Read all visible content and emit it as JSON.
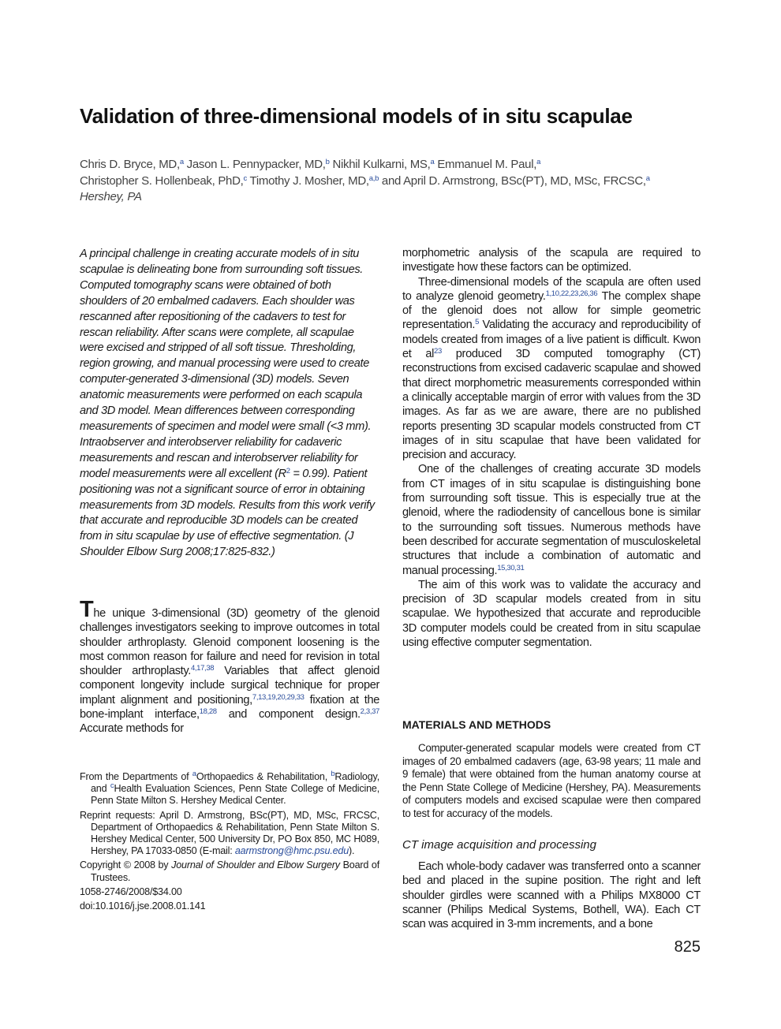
{
  "title": "Validation of three-dimensional models of in situ scapulae",
  "authors": [
    [
      {
        "t": "Chris D. Bryce, MD,"
      },
      {
        "s": "a"
      },
      {
        "t": " Jason L. Pennypacker, MD,"
      },
      {
        "s": "b"
      },
      {
        "t": " Nikhil Kulkarni, MS,"
      },
      {
        "s": "a"
      },
      {
        "t": " Emmanuel M. Paul,"
      },
      {
        "s": "a"
      }
    ],
    [
      {
        "t": "Christopher S. Hollenbeak, PhD,"
      },
      {
        "s": "c"
      },
      {
        "t": " Timothy J. Mosher, MD,"
      },
      {
        "s": "a,b"
      },
      {
        "t": " and April D. Armstrong, BSc(PT), MD, MSc, FRCSC,"
      },
      {
        "s": "a"
      }
    ],
    [
      {
        "i": "Hershey, PA"
      }
    ]
  ],
  "abstract": [
    {
      "t": "A principal challenge in creating accurate models of in situ scapulae is delineating bone from surrounding soft tissues. Computed tomography scans were obtained of both shoulders of 20 embalmed cadavers. Each shoulder was rescanned after repositioning of the cadavers to test for rescan reliability. After scans were complete, all scapulae were excised and stripped of all soft tissue. Thresholding, region growing, and manual processing were used to create computer-generated 3-dimensional (3D) models. Seven anatomic measurements were performed on each scapula and 3D model. Mean differences between corresponding measurements of specimen and model were small (<3 mm). Intraobserver and interobserver reliability for cadaveric measurements and rescan and interobserver reliability for model measurements were all excellent (R"
    },
    {
      "s": "2"
    },
    {
      "t": " = 0.99). Patient positioning was not a significant source of error in obtaining measurements from 3D models. Results from this work verify that accurate and reproducible 3D models can be created from in situ scapulae by use of effective segmentation. (J Shoulder Elbow Surg 2008;17:825-832.)"
    }
  ],
  "left_body": [
    [
      {
        "d": "T"
      },
      {
        "t": "he unique 3-dimensional (3D) geometry of the glenoid challenges investigators seeking to improve outcomes in total shoulder arthroplasty. Glenoid component loosening is the most common reason for failure and need for revision in total shoulder arthroplasty."
      },
      {
        "s": "4,17,38"
      },
      {
        "t": " Variables that affect glenoid component longevity include surgical technique for proper implant alignment and positioning,"
      },
      {
        "s": "7,13,19,20,29,33"
      },
      {
        "t": " fixation at the bone-implant interface,"
      },
      {
        "s": "18,28"
      },
      {
        "t": " and component design."
      },
      {
        "s": "2,3,37"
      },
      {
        "t": " Accurate methods for"
      }
    ]
  ],
  "footnotes": [
    [
      {
        "t": "From the Departments of "
      },
      {
        "s": "a"
      },
      {
        "t": "Orthopaedics & Rehabilitation, "
      },
      {
        "s": "b"
      },
      {
        "t": "Radiology, and "
      },
      {
        "s": "c"
      },
      {
        "t": "Health Evaluation Sciences, Penn State College of Medicine, Penn State Milton S. Hershey Medical Center."
      }
    ],
    [
      {
        "t": "Reprint requests: April D. Armstrong, BSc(PT), MD, MSc, FRCSC, Department of Orthopaedics & Rehabilitation, Penn State Milton S. Hershey Medical Center, 500 University Dr, PO Box 850, MC H089, Hershey, PA 17033-0850 (E-mail: "
      },
      {
        "i": "aarmstrong@hmc.psu.edu"
      },
      {
        "t": ")."
      }
    ],
    [
      {
        "t": "Copyright © 2008 by "
      },
      {
        "i": "Journal of Shoulder and Elbow Surgery"
      },
      {
        "t": " Board of Trustees."
      }
    ],
    [
      {
        "t": "1058-2746/2008/$34.00"
      }
    ],
    [
      {
        "t": "doi:10.1016/j.jse.2008.01.141"
      }
    ]
  ],
  "right_body": [
    [
      {
        "t": "morphometric analysis of the scapula are required to investigate how these factors can be optimized."
      }
    ],
    [
      {
        "t": "Three-dimensional models of the scapula are often used to analyze glenoid geometry."
      },
      {
        "s": "1,10,22,23,26,36"
      },
      {
        "t": " The complex shape of the glenoid does not allow for simple geometric representation."
      },
      {
        "s": "5"
      },
      {
        "t": " Validating the accuracy and reproducibility of models created from images of a live patient is difficult. Kwon et al"
      },
      {
        "s": "23"
      },
      {
        "t": " produced 3D computed tomography (CT) reconstructions from excised cadaveric scapulae and showed that direct morphometric measurements corresponded within a clinically acceptable margin of error with values from the 3D images. As far as we are aware, there are no published reports presenting 3D scapular models constructed from CT images of in situ scapulae that have been validated for precision and accuracy."
      }
    ],
    [
      {
        "t": "One of the challenges of creating accurate 3D models from CT images of in situ scapulae is distinguishing bone from surrounding soft tissue. This is especially true at the glenoid, where the radiodensity of cancellous bone is similar to the surrounding soft tissues. Numerous methods have been described for accurate segmentation of musculoskeletal structures that include a combination of automatic and manual processing."
      },
      {
        "s": "15,30,31"
      }
    ],
    [
      {
        "t": "The aim of this work was to validate the accuracy and precision of 3D scapular models created from in situ scapulae. We hypothesized that accurate and reproducible 3D computer models could be created from in situ scapulae using effective computer segmentation."
      }
    ]
  ],
  "methods": {
    "heading": "MATERIALS AND METHODS",
    "paragraphs": [
      [
        {
          "t": "Computer-generated scapular models were created from CT images of 20 embalmed cadavers (age, 63-98 years; 11 male and 9 female) that were obtained from the human anatomy course at the Penn State College of Medicine (Hershey, PA). Measurements of computers models and excised scapulae were then compared to test for accuracy of the models."
        }
      ]
    ],
    "subheading": "CT image acquisition and processing",
    "sub_paragraphs": [
      [
        {
          "t": "Each whole-body cadaver was transferred onto a scanner bed and placed in the supine position. The right and left shoulder girdles were scanned with a Philips MX8000 CT scanner (Philips Medical Systems, Bothell, WA). Each CT scan was acquired in 3-mm increments, and a bone"
        }
      ]
    ]
  },
  "page_number": "825"
}
